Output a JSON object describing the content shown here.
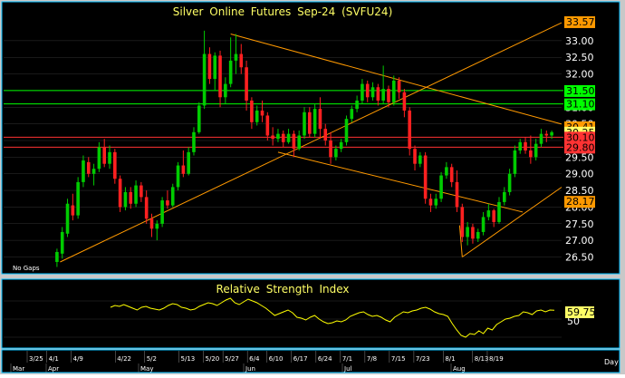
{
  "main_chart": {
    "title": "Silver Online Futures Sep-24 (SVFU24)",
    "no_gaps_label": "No Gaps",
    "y_ticks": [
      26.5,
      27.0,
      27.5,
      28.0,
      28.5,
      29.0,
      29.5,
      30.0,
      30.5,
      31.0,
      31.5,
      32.0,
      32.5,
      33.0
    ],
    "y_tick_labels": [
      "26.50",
      "27.00",
      "27.50",
      "28.00",
      "28.50",
      "29.00",
      "29.50",
      "30.00",
      "30.50",
      "31.00",
      "31.50",
      "32.00",
      "32.50",
      "33.00"
    ],
    "ylim": [
      26.05,
      33.95
    ],
    "price_tags": [
      {
        "label": "33.57",
        "value": 33.57,
        "bg": "#ff9900",
        "fg": "#000000"
      },
      {
        "label": "31.50",
        "value": 31.5,
        "bg": "#00ff00",
        "fg": "#000000"
      },
      {
        "label": "31.10",
        "value": 31.1,
        "bg": "#00ff00",
        "fg": "#000000"
      },
      {
        "label": "30.41",
        "value": 30.41,
        "bg": "#ff9900",
        "fg": "#000000"
      },
      {
        "label": "30.25",
        "value": 30.25,
        "bg": "#ffff66",
        "fg": "#000000"
      },
      {
        "label": "30.10",
        "value": 30.1,
        "bg": "#ff3333",
        "fg": "#000000"
      },
      {
        "label": "29.80",
        "value": 29.8,
        "bg": "#ff3333",
        "fg": "#000000"
      },
      {
        "label": "28.17",
        "value": 28.17,
        "bg": "#ff9900",
        "fg": "#000000"
      }
    ]
  },
  "rsi_panel": {
    "title": "Relative Strength Index",
    "y_tick_labels": [
      "50"
    ],
    "last_value_label": "59.75",
    "last_value": 59.75,
    "ylim": [
      20,
      90
    ],
    "values": [
      63,
      65,
      64,
      66,
      64,
      62,
      60,
      63,
      64,
      62,
      61,
      60,
      62,
      65,
      67,
      66,
      63,
      62,
      60,
      61,
      64,
      66,
      68,
      67,
      65,
      68,
      71,
      73,
      68,
      66,
      69,
      72,
      70,
      68,
      65,
      62,
      58,
      54,
      56,
      58,
      60,
      57,
      52,
      51,
      49,
      52,
      54,
      50,
      47,
      45,
      46,
      48,
      47,
      49,
      53,
      55,
      57,
      58,
      55,
      53,
      54,
      52,
      49,
      47,
      52,
      55,
      58,
      57,
      59,
      60,
      62,
      63,
      61,
      58,
      56,
      55,
      53,
      45,
      38,
      32,
      30,
      34,
      33,
      37,
      34,
      40,
      38,
      44,
      47,
      50,
      51,
      53,
      54,
      58,
      57,
      55,
      59,
      60,
      58,
      60,
      59.75
    ]
  },
  "x_axis": {
    "tick_labels": [
      "3/25",
      "4/1",
      "4/9",
      "4/22",
      "5/2",
      "5/13",
      "5/20",
      "5/27",
      "6/4",
      "6/10",
      "6/17",
      "6/24",
      "7/1",
      "7/8",
      "7/15",
      "7/23",
      "8/1",
      "8/13",
      "8/19"
    ],
    "month_labels": [
      "Mar",
      "Apr",
      "May",
      "Jun",
      "Jul",
      "Aug"
    ],
    "unit_label": "Day"
  },
  "chart_data": {
    "type": "candlestick",
    "title": "Silver Online Futures Sep-24 (SVFU24)",
    "interval": "Day",
    "horizontal_levels": [
      {
        "value": 31.5,
        "color": "#00ff00"
      },
      {
        "value": 31.1,
        "color": "#00ff00"
      },
      {
        "value": 30.1,
        "color": "#ff3333"
      },
      {
        "value": 29.8,
        "color": "#ff3333"
      }
    ],
    "candles": [
      {
        "o": 26.35,
        "h": 26.75,
        "l": 26.2,
        "c": 26.65
      },
      {
        "o": 26.6,
        "h": 27.4,
        "l": 26.45,
        "c": 27.25
      },
      {
        "o": 27.2,
        "h": 28.25,
        "l": 27.1,
        "c": 28.1
      },
      {
        "o": 28.05,
        "h": 28.4,
        "l": 27.6,
        "c": 27.75
      },
      {
        "o": 27.75,
        "h": 28.9,
        "l": 27.65,
        "c": 28.75
      },
      {
        "o": 28.75,
        "h": 29.55,
        "l": 28.6,
        "c": 29.4
      },
      {
        "o": 29.35,
        "h": 29.5,
        "l": 28.9,
        "c": 29.0
      },
      {
        "o": 29.0,
        "h": 29.3,
        "l": 28.65,
        "c": 29.15
      },
      {
        "o": 29.15,
        "h": 29.95,
        "l": 29.05,
        "c": 29.8
      },
      {
        "o": 29.8,
        "h": 30.05,
        "l": 29.2,
        "c": 29.3
      },
      {
        "o": 29.3,
        "h": 29.85,
        "l": 29.15,
        "c": 29.65
      },
      {
        "o": 29.65,
        "h": 29.75,
        "l": 28.7,
        "c": 28.85
      },
      {
        "o": 28.85,
        "h": 28.95,
        "l": 27.85,
        "c": 28.0
      },
      {
        "o": 28.0,
        "h": 28.6,
        "l": 27.9,
        "c": 28.45
      },
      {
        "o": 28.45,
        "h": 28.6,
        "l": 27.95,
        "c": 28.1
      },
      {
        "o": 28.1,
        "h": 28.8,
        "l": 28.0,
        "c": 28.65
      },
      {
        "o": 28.65,
        "h": 28.75,
        "l": 28.15,
        "c": 28.3
      },
      {
        "o": 28.3,
        "h": 28.5,
        "l": 27.5,
        "c": 27.65
      },
      {
        "o": 27.65,
        "h": 27.8,
        "l": 27.1,
        "c": 27.35
      },
      {
        "o": 27.35,
        "h": 27.6,
        "l": 27.0,
        "c": 27.5
      },
      {
        "o": 27.5,
        "h": 28.3,
        "l": 27.4,
        "c": 28.2
      },
      {
        "o": 28.2,
        "h": 28.5,
        "l": 27.95,
        "c": 28.05
      },
      {
        "o": 28.05,
        "h": 28.7,
        "l": 28.0,
        "c": 28.6
      },
      {
        "o": 28.6,
        "h": 29.35,
        "l": 28.5,
        "c": 29.25
      },
      {
        "o": 29.25,
        "h": 29.7,
        "l": 28.9,
        "c": 29.0
      },
      {
        "o": 29.0,
        "h": 29.8,
        "l": 28.95,
        "c": 29.65
      },
      {
        "o": 29.65,
        "h": 30.4,
        "l": 29.55,
        "c": 30.25
      },
      {
        "o": 30.25,
        "h": 31.15,
        "l": 30.2,
        "c": 31.05
      },
      {
        "o": 31.05,
        "h": 33.3,
        "l": 30.95,
        "c": 32.6
      },
      {
        "o": 32.6,
        "h": 32.8,
        "l": 31.7,
        "c": 31.85
      },
      {
        "o": 31.85,
        "h": 32.65,
        "l": 31.5,
        "c": 32.55
      },
      {
        "o": 32.55,
        "h": 32.7,
        "l": 31.0,
        "c": 31.3
      },
      {
        "o": 31.3,
        "h": 31.9,
        "l": 31.1,
        "c": 31.7
      },
      {
        "o": 31.7,
        "h": 33.1,
        "l": 31.6,
        "c": 32.4
      },
      {
        "o": 32.4,
        "h": 33.2,
        "l": 32.0,
        "c": 32.6
      },
      {
        "o": 32.6,
        "h": 32.9,
        "l": 32.0,
        "c": 32.2
      },
      {
        "o": 32.2,
        "h": 32.4,
        "l": 30.9,
        "c": 31.2
      },
      {
        "o": 31.2,
        "h": 31.3,
        "l": 30.35,
        "c": 30.55
      },
      {
        "o": 30.55,
        "h": 31.05,
        "l": 30.45,
        "c": 30.9
      },
      {
        "o": 30.9,
        "h": 31.2,
        "l": 30.55,
        "c": 30.75
      },
      {
        "o": 30.75,
        "h": 30.85,
        "l": 30.0,
        "c": 30.15
      },
      {
        "o": 30.15,
        "h": 30.4,
        "l": 29.85,
        "c": 30.05
      },
      {
        "o": 30.05,
        "h": 30.35,
        "l": 29.95,
        "c": 30.2
      },
      {
        "o": 30.2,
        "h": 30.3,
        "l": 29.8,
        "c": 29.95
      },
      {
        "o": 29.95,
        "h": 30.35,
        "l": 29.9,
        "c": 30.2
      },
      {
        "o": 30.2,
        "h": 30.3,
        "l": 29.5,
        "c": 29.75
      },
      {
        "o": 29.75,
        "h": 30.3,
        "l": 29.7,
        "c": 30.15
      },
      {
        "o": 30.15,
        "h": 31.0,
        "l": 30.05,
        "c": 30.85
      },
      {
        "o": 30.85,
        "h": 31.0,
        "l": 30.1,
        "c": 30.2
      },
      {
        "o": 30.2,
        "h": 31.1,
        "l": 30.1,
        "c": 30.95
      },
      {
        "o": 30.95,
        "h": 31.3,
        "l": 30.05,
        "c": 30.35
      },
      {
        "o": 30.35,
        "h": 30.5,
        "l": 29.85,
        "c": 30.0
      },
      {
        "o": 30.0,
        "h": 30.25,
        "l": 29.3,
        "c": 29.5
      },
      {
        "o": 29.5,
        "h": 29.85,
        "l": 29.4,
        "c": 29.75
      },
      {
        "o": 29.75,
        "h": 30.05,
        "l": 29.65,
        "c": 29.95
      },
      {
        "o": 29.95,
        "h": 30.75,
        "l": 29.85,
        "c": 30.65
      },
      {
        "o": 30.65,
        "h": 31.05,
        "l": 30.55,
        "c": 30.95
      },
      {
        "o": 30.95,
        "h": 31.35,
        "l": 30.85,
        "c": 31.2
      },
      {
        "o": 31.2,
        "h": 31.85,
        "l": 31.1,
        "c": 31.7
      },
      {
        "o": 31.7,
        "h": 31.8,
        "l": 31.15,
        "c": 31.3
      },
      {
        "o": 31.3,
        "h": 31.75,
        "l": 31.2,
        "c": 31.6
      },
      {
        "o": 31.6,
        "h": 31.7,
        "l": 31.05,
        "c": 31.2
      },
      {
        "o": 31.2,
        "h": 32.25,
        "l": 31.1,
        "c": 31.55
      },
      {
        "o": 31.55,
        "h": 31.65,
        "l": 31.0,
        "c": 31.15
      },
      {
        "o": 31.15,
        "h": 31.95,
        "l": 31.05,
        "c": 31.8
      },
      {
        "o": 31.8,
        "h": 31.9,
        "l": 31.25,
        "c": 31.45
      },
      {
        "o": 31.45,
        "h": 31.55,
        "l": 30.7,
        "c": 30.9
      },
      {
        "o": 30.9,
        "h": 31.0,
        "l": 29.55,
        "c": 29.75
      },
      {
        "o": 29.75,
        "h": 29.85,
        "l": 29.1,
        "c": 29.3
      },
      {
        "o": 29.3,
        "h": 29.65,
        "l": 29.2,
        "c": 29.55
      },
      {
        "o": 29.55,
        "h": 29.65,
        "l": 28.1,
        "c": 28.25
      },
      {
        "o": 28.25,
        "h": 28.4,
        "l": 27.85,
        "c": 28.05
      },
      {
        "o": 28.05,
        "h": 28.4,
        "l": 27.95,
        "c": 28.25
      },
      {
        "o": 28.25,
        "h": 29.05,
        "l": 28.15,
        "c": 28.95
      },
      {
        "o": 28.95,
        "h": 29.35,
        "l": 28.85,
        "c": 29.2
      },
      {
        "o": 29.2,
        "h": 29.3,
        "l": 28.6,
        "c": 28.75
      },
      {
        "o": 28.75,
        "h": 29.1,
        "l": 27.85,
        "c": 28.0
      },
      {
        "o": 28.0,
        "h": 28.1,
        "l": 26.95,
        "c": 27.1
      },
      {
        "o": 27.1,
        "h": 27.55,
        "l": 26.85,
        "c": 27.4
      },
      {
        "o": 27.4,
        "h": 27.5,
        "l": 26.9,
        "c": 27.05
      },
      {
        "o": 27.05,
        "h": 27.35,
        "l": 26.95,
        "c": 27.25
      },
      {
        "o": 27.25,
        "h": 27.85,
        "l": 27.15,
        "c": 27.7
      },
      {
        "o": 27.7,
        "h": 28.1,
        "l": 27.6,
        "c": 27.9
      },
      {
        "o": 27.9,
        "h": 27.95,
        "l": 27.4,
        "c": 27.55
      },
      {
        "o": 27.55,
        "h": 28.3,
        "l": 27.5,
        "c": 28.15
      },
      {
        "o": 28.15,
        "h": 28.6,
        "l": 28.05,
        "c": 28.45
      },
      {
        "o": 28.45,
        "h": 29.15,
        "l": 28.35,
        "c": 29.0
      },
      {
        "o": 29.0,
        "h": 29.85,
        "l": 28.9,
        "c": 29.7
      },
      {
        "o": 29.7,
        "h": 30.05,
        "l": 29.6,
        "c": 29.95
      },
      {
        "o": 29.95,
        "h": 30.1,
        "l": 29.6,
        "c": 29.7
      },
      {
        "o": 29.7,
        "h": 30.15,
        "l": 29.3,
        "c": 29.5
      },
      {
        "o": 29.5,
        "h": 30.05,
        "l": 29.4,
        "c": 29.9
      },
      {
        "o": 29.9,
        "h": 30.35,
        "l": 29.8,
        "c": 30.2
      },
      {
        "o": 30.2,
        "h": 30.3,
        "l": 29.95,
        "c": 30.15
      },
      {
        "o": 30.15,
        "h": 30.3,
        "l": 30.05,
        "c": 30.25
      }
    ],
    "trend_lines": [
      {
        "x1": 0.6,
        "y1": 26.35,
        "x2": 69.5,
        "y2": 31.55,
        "color": "#ff9900",
        "ext_to_right": true
      },
      {
        "x1": 33.0,
        "y1": 33.2,
        "x2": 69.0,
        "y2": 31.65,
        "color": "#ff9900",
        "ext_to_right": true
      },
      {
        "x1": 42.0,
        "y1": 29.65,
        "x2": 88.5,
        "y2": 27.85,
        "color": "#ff9900",
        "ext_to_right": false
      },
      {
        "x1": 77.0,
        "y1": 26.5,
        "x2": 86.0,
        "y2": 27.5,
        "color": "#ff9900",
        "ext_to_right": true
      },
      {
        "x1": 77.0,
        "y1": 26.5,
        "x2": 76.5,
        "y2": 27.45,
        "color": "#ff9900",
        "ext_to_right": false
      }
    ]
  },
  "colors": {
    "background": "#000000",
    "frame": "#c8c8c8",
    "candle_up": "#00cc00",
    "candle_down": "#ff2020",
    "title_text": "#ffff66",
    "axis_text": "#ffffff",
    "trend_line": "#ff9900",
    "rsi_line": "#ffff00",
    "grid": "#333333"
  }
}
